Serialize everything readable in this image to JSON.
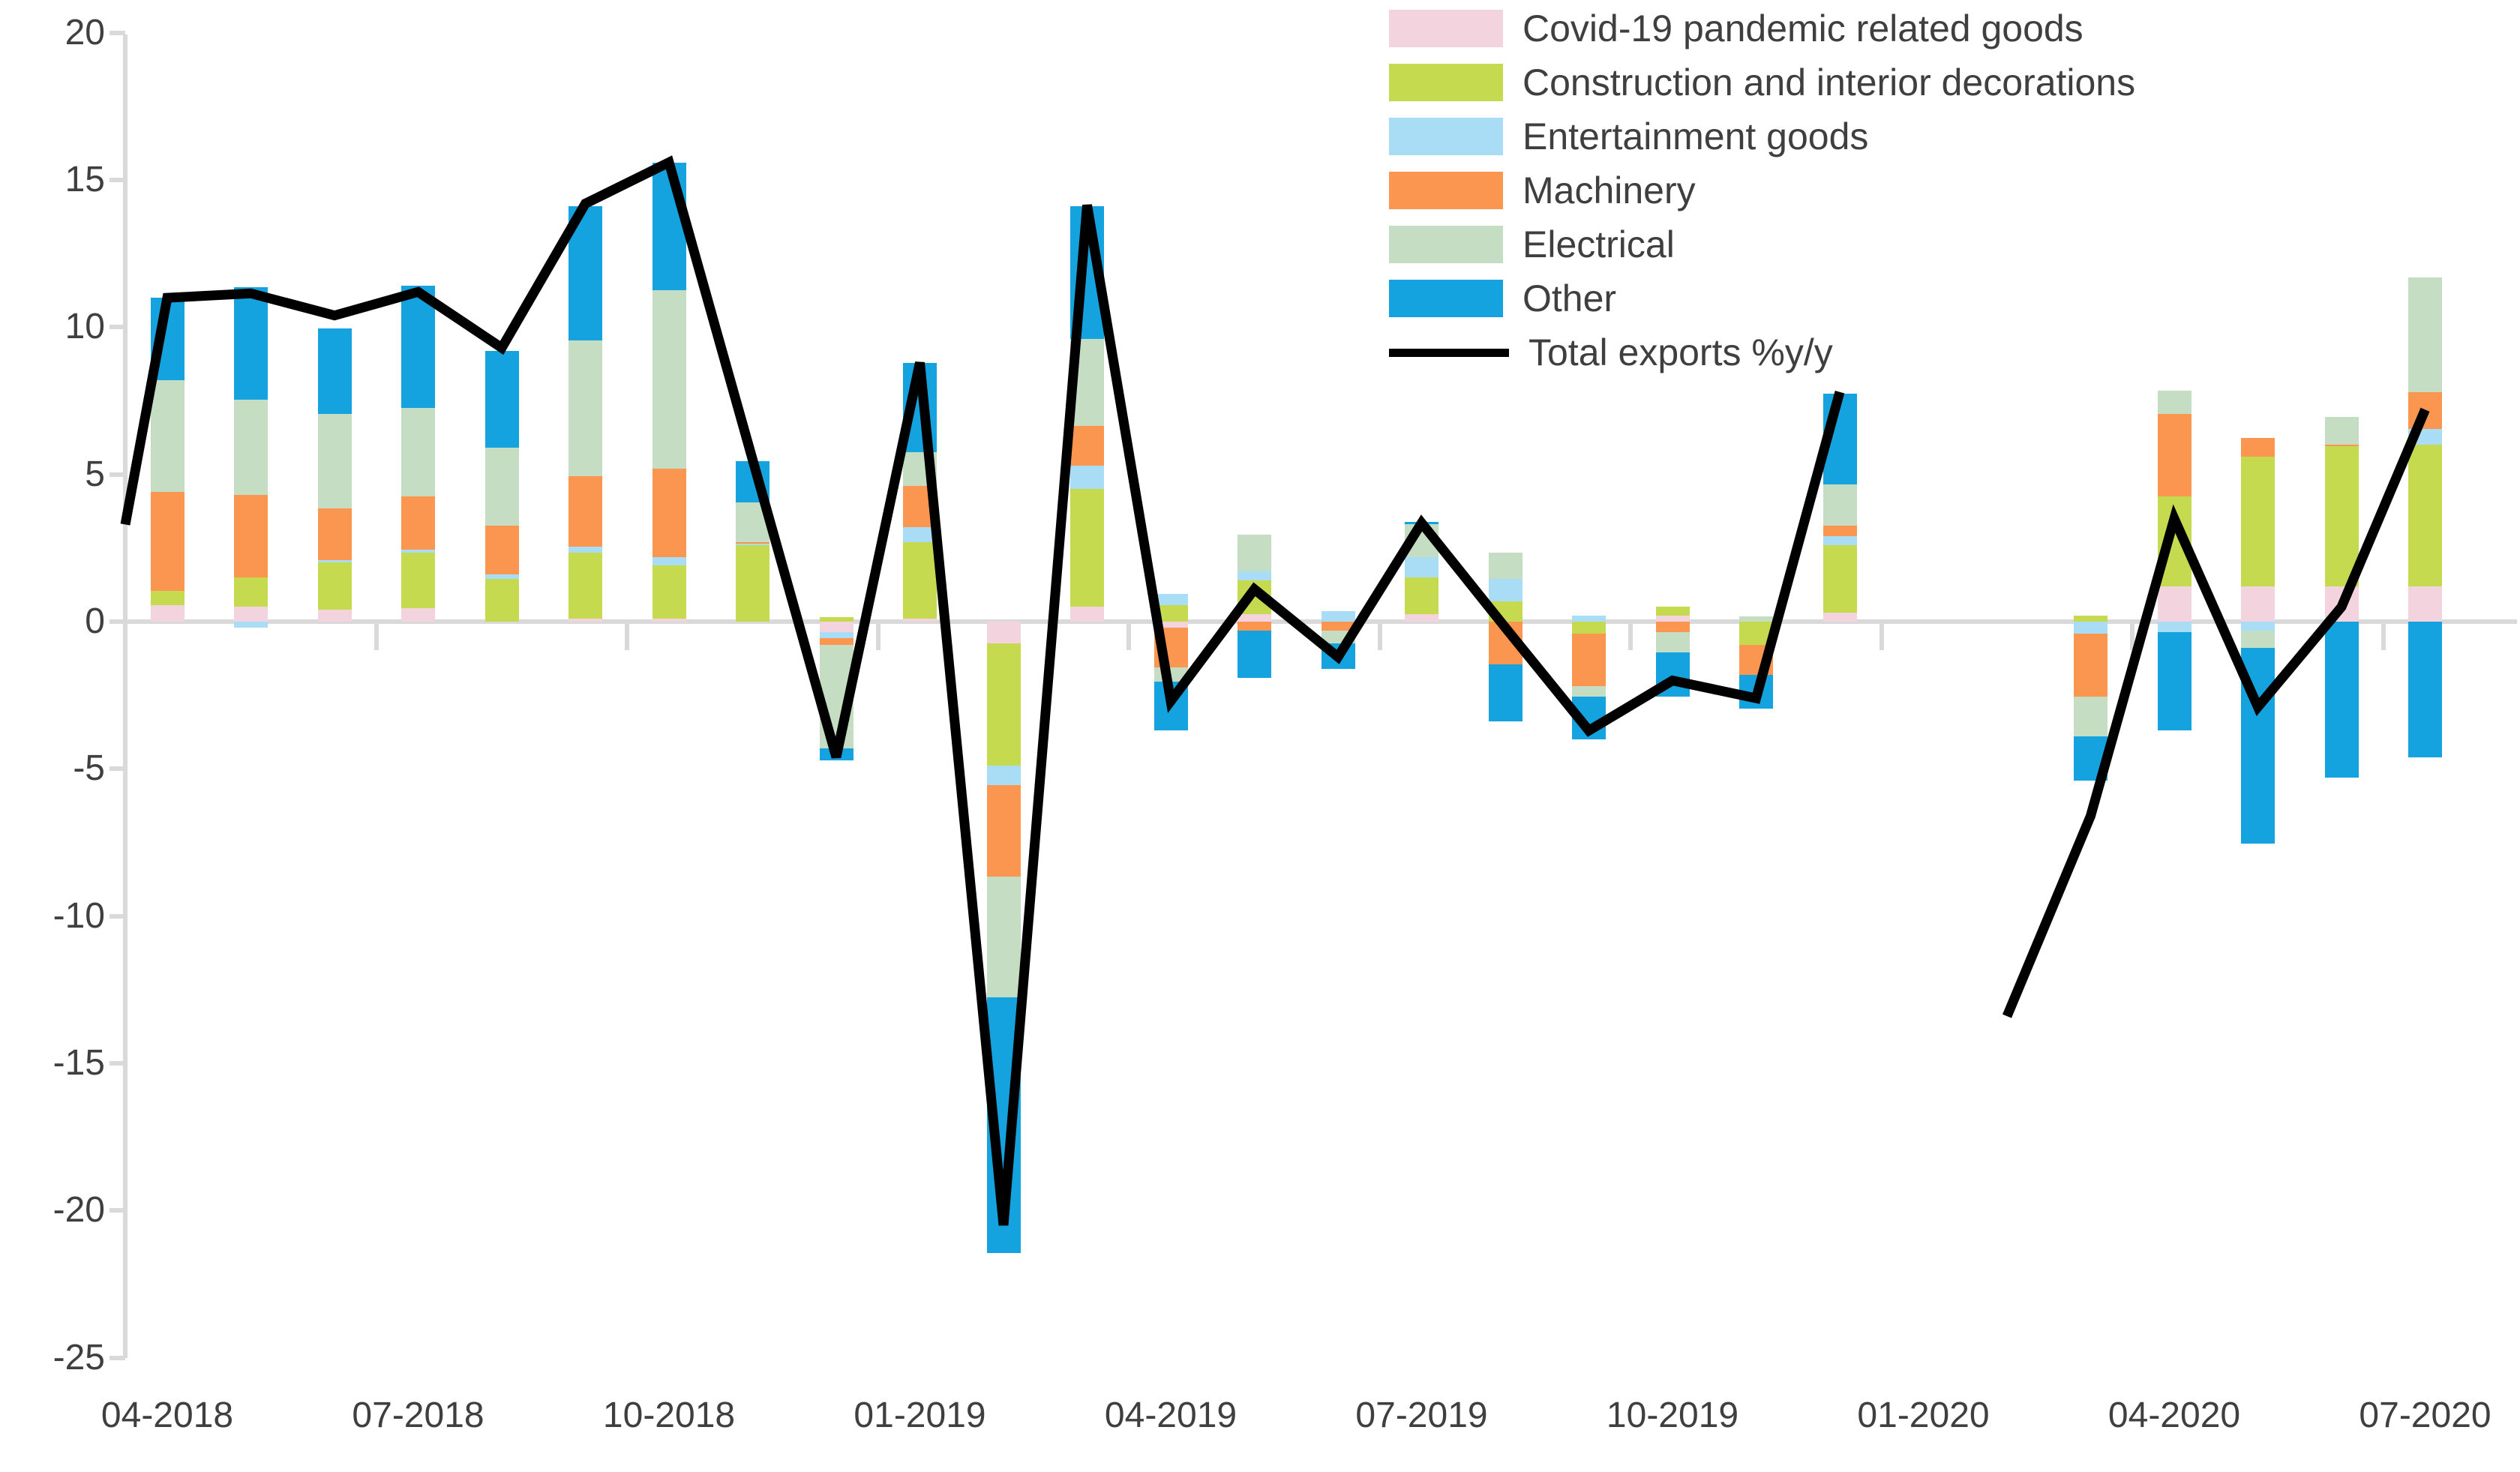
{
  "chart_data": {
    "type": "combo_stacked_bar_line",
    "title": "",
    "xlabel": "",
    "ylabel": "",
    "categories": [
      "04-2018",
      "05-2018",
      "06-2018",
      "07-2018",
      "08-2018",
      "09-2018",
      "10-2018",
      "11-2018",
      "12-2018",
      "01-2019",
      "02-2019",
      "03-2019",
      "04-2019",
      "05-2019",
      "06-2019",
      "07-2019",
      "08-2019",
      "09-2019",
      "10-2019",
      "11-2019",
      "12-2019",
      "01-2020",
      "02-2020",
      "03-2020",
      "04-2020",
      "05-2020",
      "06-2020",
      "07-2020"
    ],
    "x_tick_label_every": 3,
    "x_tick_labels_shown": [
      "04-2018",
      "07-2018",
      "10-2018",
      "01-2019",
      "04-2019",
      "07-2019",
      "10-2019",
      "01-2020",
      "04-2020",
      "07-2020"
    ],
    "y_axis": {
      "min": -25,
      "max": 20,
      "step": 5,
      "tick_labels": [
        "20",
        "15",
        "10",
        "5",
        "0",
        "-5",
        "-10",
        "-15",
        "-20",
        "-25"
      ]
    },
    "grid": "zero-line-only",
    "legend_position": "top-right",
    "bar_series": [
      {
        "name": "Covid-19 pandemic related goods",
        "color": "#F2D3DE",
        "values": [
          0.55,
          0.5,
          0.4,
          0.45,
          0,
          0.1,
          0.1,
          0,
          -0.35,
          0.1,
          -0.75,
          0.5,
          -0.2,
          0.25,
          0,
          0.25,
          0,
          0,
          0.2,
          0,
          0.3,
          0,
          0,
          0,
          1.2,
          1.2,
          1.2,
          1.2
        ]
      },
      {
        "name": "Construction and interior decorations",
        "color": "#C6DA50",
        "values": [
          0.5,
          1.0,
          1.6,
          1.9,
          1.45,
          2.25,
          1.8,
          2.6,
          0.15,
          2.6,
          -4.15,
          4.0,
          0.55,
          1.15,
          0,
          1.25,
          0.7,
          -0.4,
          0.3,
          -0.8,
          2.3,
          0,
          0,
          0.2,
          3.05,
          4.4,
          4.75,
          4.8
        ]
      },
      {
        "name": "Entertainment goods",
        "color": "#A9DDF6",
        "values": [
          0,
          -0.2,
          0.1,
          0.1,
          0.15,
          0.2,
          0.3,
          0.05,
          -0.2,
          0.5,
          -0.65,
          0.8,
          0.4,
          0.3,
          0.35,
          0.7,
          0.75,
          0.2,
          0,
          0,
          0.3,
          0,
          0,
          -0.4,
          -0.35,
          -0.3,
          0,
          0.55
        ]
      },
      {
        "name": "Machinery",
        "color": "#FA9650",
        "values": [
          3.35,
          2.8,
          1.75,
          1.8,
          1.65,
          2.4,
          3.0,
          0.05,
          -0.25,
          1.4,
          -3.1,
          1.35,
          -1.35,
          -0.3,
          -0.3,
          0,
          -1.45,
          -1.8,
          -0.35,
          -1.0,
          0.35,
          0,
          0,
          -2.15,
          2.8,
          0.65,
          0.05,
          1.25
        ]
      },
      {
        "name": "Electrical",
        "color": "#C5DDC2",
        "values": [
          3.8,
          3.25,
          3.2,
          3.0,
          2.65,
          4.6,
          6.05,
          1.35,
          -3.5,
          1.15,
          -4.1,
          2.95,
          -0.5,
          1.25,
          -0.45,
          1.1,
          0.9,
          -0.35,
          -0.7,
          0.18,
          1.4,
          0,
          0,
          -1.35,
          0.8,
          -0.6,
          0.95,
          3.9
        ]
      },
      {
        "name": "Other",
        "color": "#15A3DF",
        "values": [
          2.8,
          3.8,
          2.9,
          4.15,
          3.3,
          4.55,
          4.35,
          1.4,
          -0.4,
          3.05,
          -8.7,
          4.5,
          -1.65,
          -1.6,
          -0.85,
          0.1,
          -1.95,
          -1.45,
          -1.5,
          -1.15,
          3.1,
          0,
          0,
          -1.5,
          -3.35,
          -6.65,
          -5.3,
          -4.6
        ]
      }
    ],
    "line_series": {
      "name": "Total exports %y/y",
      "color": "#000000",
      "lead_in_value": 3.3,
      "values": [
        11.0,
        11.15,
        10.4,
        11.2,
        9.3,
        14.2,
        15.6,
        5.5,
        -4.6,
        8.8,
        -20.5,
        14.15,
        -2.7,
        1.1,
        -1.2,
        3.35,
        -0.2,
        -3.7,
        -2.0,
        -2.6,
        7.8,
        null,
        -13.4,
        -6.6,
        3.5,
        -2.9,
        0.5,
        7.2
      ]
    }
  },
  "legend": {
    "items": [
      "Covid-19 pandemic related goods",
      "Construction and interior decorations",
      "Entertainment goods",
      "Machinery",
      "Electrical",
      "Other",
      "Total exports %y/y"
    ]
  }
}
